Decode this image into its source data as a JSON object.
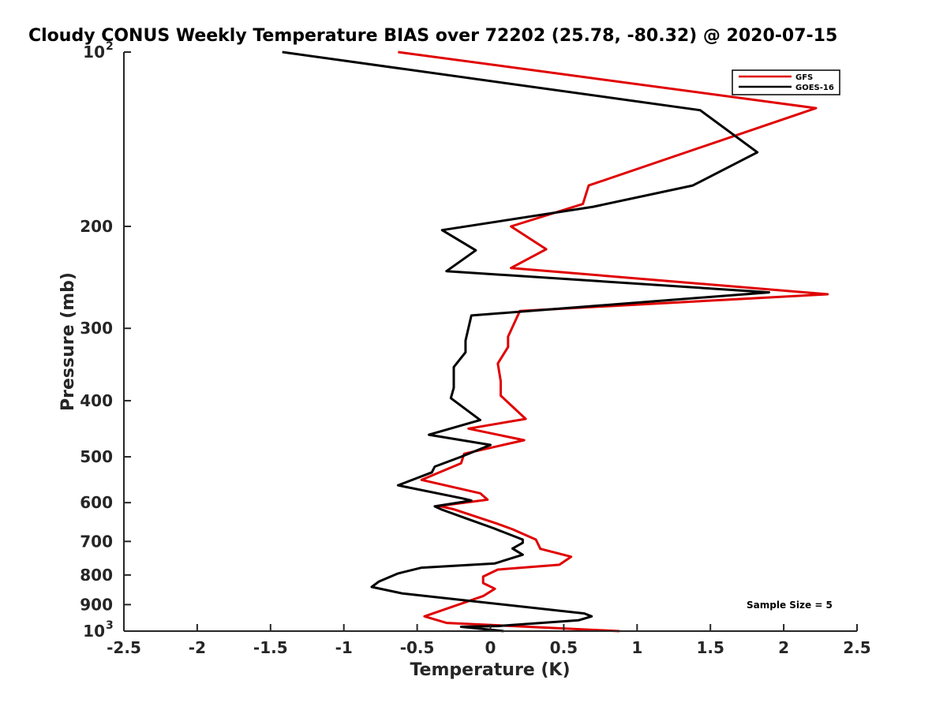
{
  "chart_data": {
    "type": "line",
    "title": "Cloudy CONUS Weekly Temperature BIAS over 72202 (25.78, -80.32) @ 2020-07-15",
    "xlabel": "Temperature (K)",
    "ylabel": "Pressure (mb)",
    "xlim": [
      -2.5,
      2.5
    ],
    "ylim": [
      100,
      1000
    ],
    "yscale": "log",
    "yreversed": true,
    "x_ticks": [
      "-2.5",
      "-2",
      "-1.5",
      "-1",
      "-0.5",
      "0",
      "0.5",
      "1",
      "1.5",
      "2",
      "2.5"
    ],
    "y_ticks": [
      {
        "value": 100,
        "label": "10",
        "sup": "2"
      },
      {
        "value": 200,
        "label": "200",
        "sup": ""
      },
      {
        "value": 300,
        "label": "300",
        "sup": ""
      },
      {
        "value": 400,
        "label": "400",
        "sup": ""
      },
      {
        "value": 500,
        "label": "500",
        "sup": ""
      },
      {
        "value": 600,
        "label": "600",
        "sup": ""
      },
      {
        "value": 700,
        "label": "700",
        "sup": ""
      },
      {
        "value": 800,
        "label": "800",
        "sup": ""
      },
      {
        "value": 900,
        "label": "900",
        "sup": ""
      },
      {
        "value": 1000,
        "label": "10",
        "sup": "3"
      }
    ],
    "grid": false,
    "legend_position": "top-right",
    "annotation": "Sample Size = 5",
    "series": [
      {
        "name": "GFS",
        "color": "#e00000",
        "points": [
          [
            -0.63,
            100
          ],
          [
            2.22,
            125
          ],
          [
            0.67,
            170
          ],
          [
            0.63,
            183
          ],
          [
            0.14,
            200
          ],
          [
            0.38,
            219
          ],
          [
            0.14,
            236
          ],
          [
            2.3,
            262
          ],
          [
            0.2,
            280
          ],
          [
            0.12,
            310
          ],
          [
            0.12,
            323
          ],
          [
            0.05,
            345
          ],
          [
            0.07,
            370
          ],
          [
            0.07,
            392
          ],
          [
            0.24,
            430
          ],
          [
            -0.15,
            447
          ],
          [
            0.23,
            468
          ],
          [
            -0.18,
            494
          ],
          [
            -0.2,
            513
          ],
          [
            -0.47,
            548
          ],
          [
            -0.07,
            578
          ],
          [
            -0.02,
            593
          ],
          [
            -0.35,
            608
          ],
          [
            -0.25,
            616
          ],
          [
            0.05,
            653
          ],
          [
            0.15,
            667
          ],
          [
            0.31,
            695
          ],
          [
            0.34,
            721
          ],
          [
            0.55,
            744
          ],
          [
            0.47,
            768
          ],
          [
            0.05,
            783
          ],
          [
            -0.05,
            805
          ],
          [
            -0.05,
            826
          ],
          [
            0.03,
            845
          ],
          [
            -0.05,
            870
          ],
          [
            -0.45,
            943
          ],
          [
            -0.3,
            968
          ],
          [
            0.88,
            1000
          ]
        ]
      },
      {
        "name": "GOES-16",
        "color": "#000000",
        "points": [
          [
            -1.42,
            100
          ],
          [
            1.43,
            126
          ],
          [
            1.82,
            149
          ],
          [
            1.38,
            170
          ],
          [
            0.7,
            185
          ],
          [
            -0.33,
            203
          ],
          [
            -0.1,
            220
          ],
          [
            -0.3,
            239
          ],
          [
            1.9,
            260
          ],
          [
            -0.13,
            285
          ],
          [
            -0.17,
            315
          ],
          [
            -0.17,
            330
          ],
          [
            -0.25,
            350
          ],
          [
            -0.25,
            380
          ],
          [
            -0.27,
            396
          ],
          [
            -0.07,
            432
          ],
          [
            -0.42,
            458
          ],
          [
            0.0,
            477
          ],
          [
            -0.2,
            500
          ],
          [
            -0.38,
            520
          ],
          [
            -0.4,
            532
          ],
          [
            -0.63,
            560
          ],
          [
            -0.19,
            590
          ],
          [
            -0.13,
            595
          ],
          [
            -0.38,
            609
          ],
          [
            -0.33,
            617
          ],
          [
            -0.15,
            641
          ],
          [
            0.02,
            664
          ],
          [
            0.22,
            695
          ],
          [
            0.22,
            704
          ],
          [
            0.15,
            720
          ],
          [
            0.22,
            738
          ],
          [
            0.03,
            764
          ],
          [
            -0.47,
            777
          ],
          [
            -0.63,
            795
          ],
          [
            -0.76,
            821
          ],
          [
            -0.81,
            839
          ],
          [
            -0.6,
            861
          ],
          [
            0.64,
            932
          ],
          [
            0.69,
            943
          ],
          [
            0.6,
            958
          ],
          [
            0.05,
            980
          ],
          [
            -0.2,
            983
          ],
          [
            0.09,
            1000
          ]
        ]
      }
    ]
  }
}
